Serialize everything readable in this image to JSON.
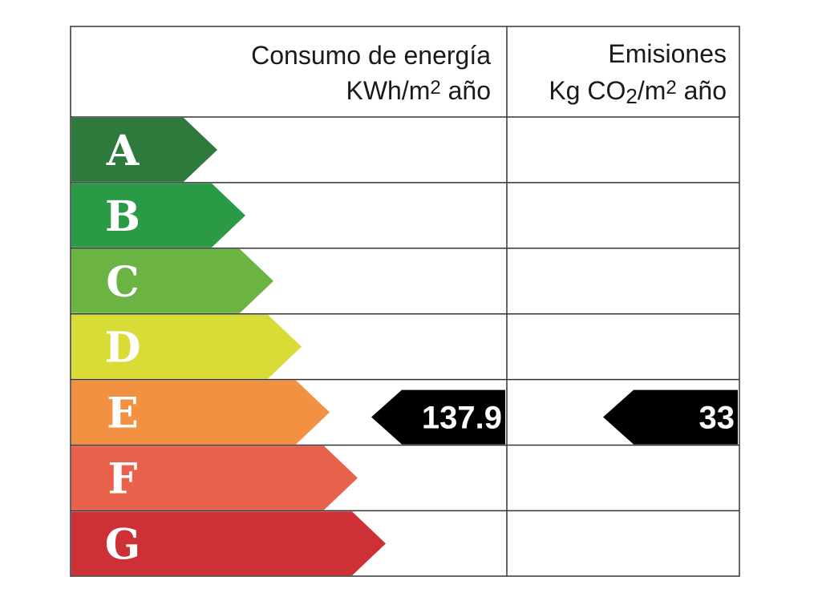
{
  "header": {
    "consumption": {
      "title": "Consumo de energía",
      "unit": [
        "KWh/m",
        "2",
        " año"
      ]
    },
    "emissions": {
      "title": "Emisiones",
      "unit": [
        "Kg CO",
        "2",
        "/m",
        "2",
        " año"
      ]
    }
  },
  "rows": [
    {
      "letter": "A",
      "color": "#2e7a3c"
    },
    {
      "letter": "B",
      "color": "#2b9a46"
    },
    {
      "letter": "C",
      "color": "#6bb444"
    },
    {
      "letter": "D",
      "color": "#d9dc36"
    },
    {
      "letter": "E",
      "color": "#f29142",
      "consumption": "137.9",
      "emissions": "33"
    },
    {
      "letter": "F",
      "color": "#e8614b"
    },
    {
      "letter": "G",
      "color": "#cd3136"
    }
  ]
}
